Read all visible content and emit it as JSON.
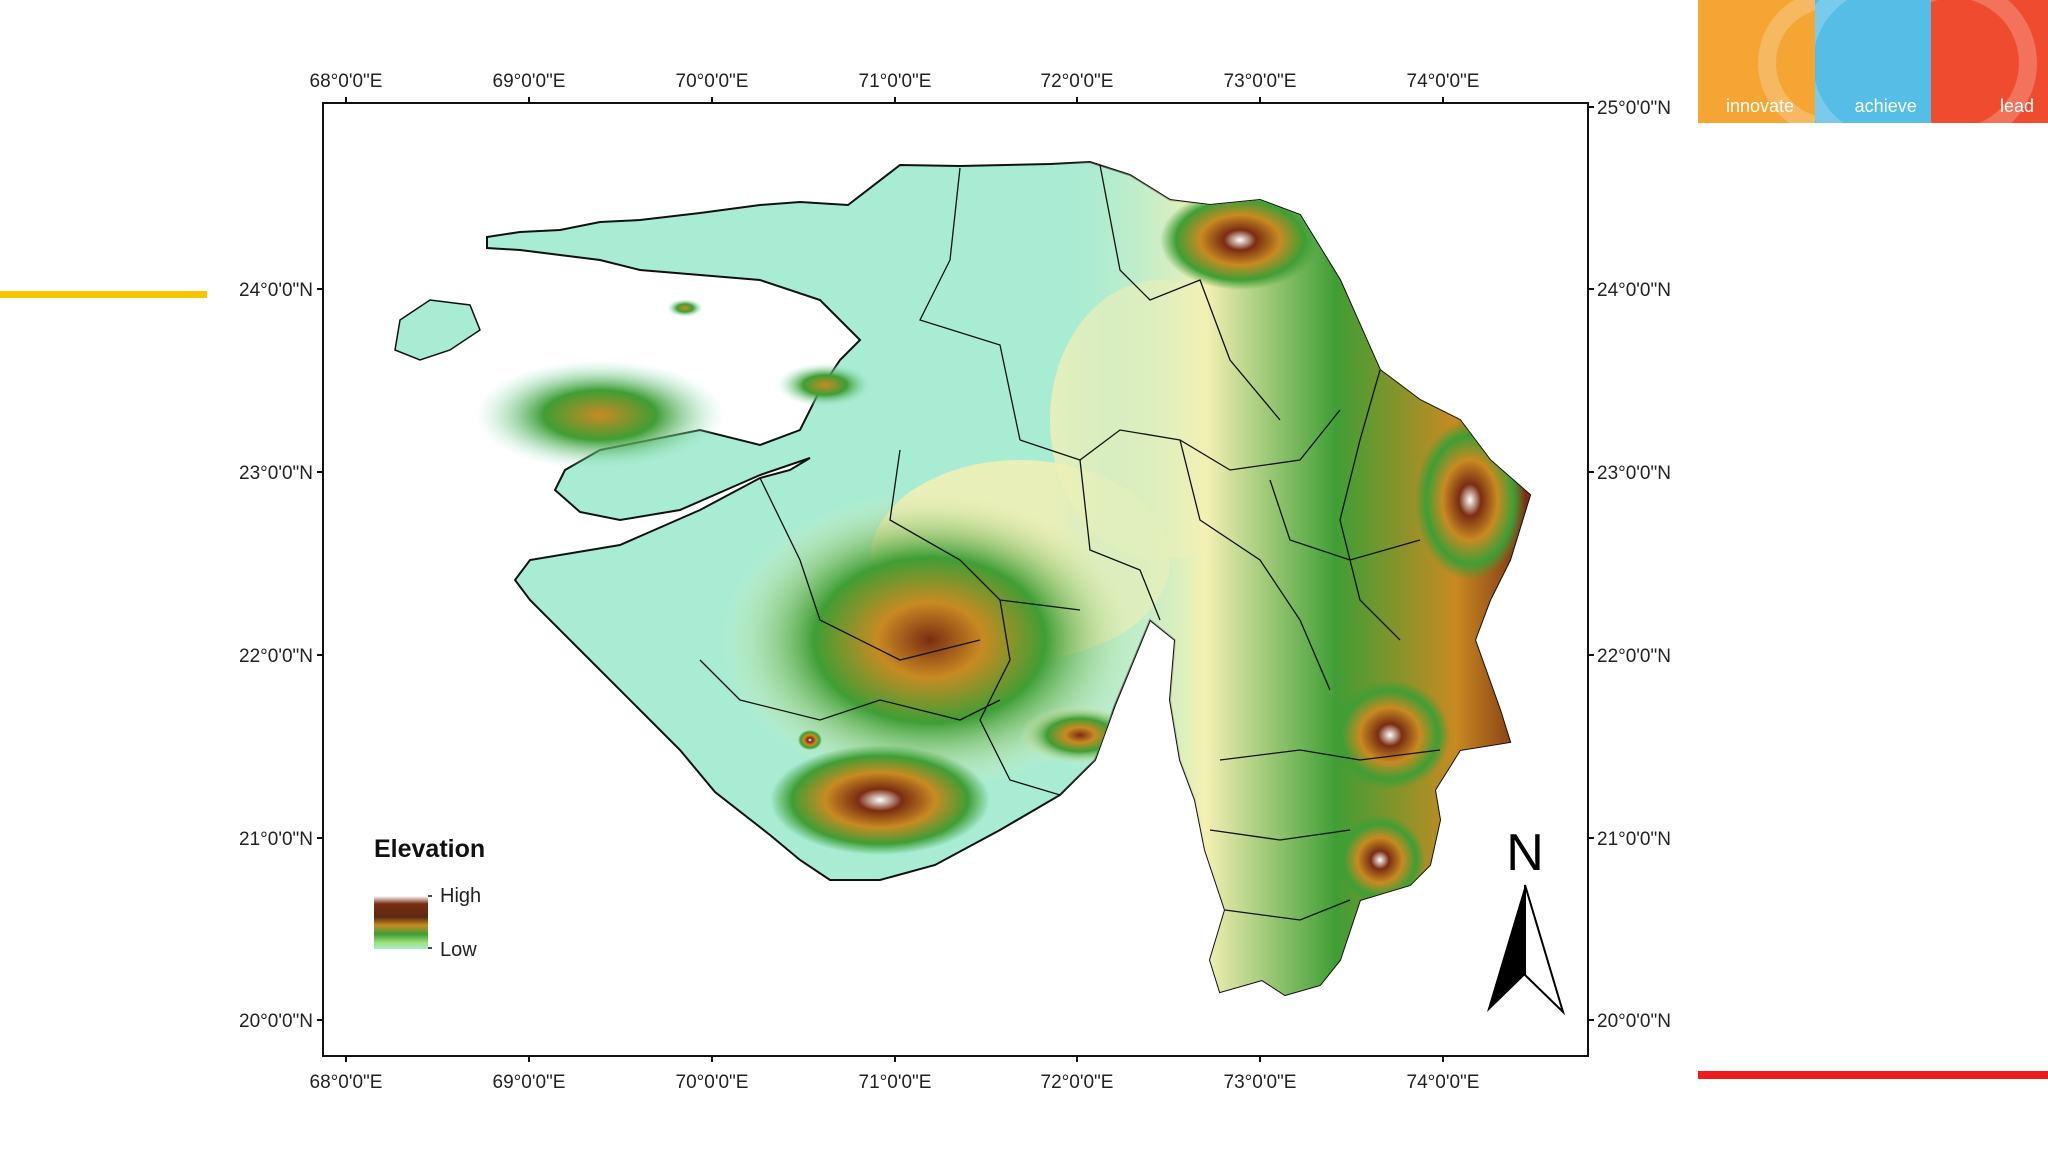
{
  "logo": {
    "segments": [
      "innovate",
      "achieve",
      "lead"
    ],
    "colors": [
      "#f4a534",
      "#55bde6",
      "#ef4b2f"
    ]
  },
  "map": {
    "region_colors": {
      "lowland": "#a8ecd4",
      "plain": "#f4f0b4",
      "green": "#3f9e35",
      "orange": "#c88a22",
      "brown": "#7a2d12",
      "peak": "#ffffff",
      "boundary": "#111111"
    },
    "lon_ticks": [
      "68°0'0\"E",
      "69°0'0\"E",
      "70°0'0\"E",
      "71°0'0\"E",
      "72°0'0\"E",
      "73°0'0\"E",
      "74°0'0\"E"
    ],
    "lat_ticks": [
      "24°0'0\"N",
      "23°0'0\"N",
      "22°0'0\"N",
      "21°0'0\"N",
      "20°0'0\"N"
    ],
    "lat_top_right": "25°0'0\"N",
    "legend": {
      "title": "Elevation",
      "high": "High",
      "low": "Low"
    },
    "north_arrow": "N"
  }
}
